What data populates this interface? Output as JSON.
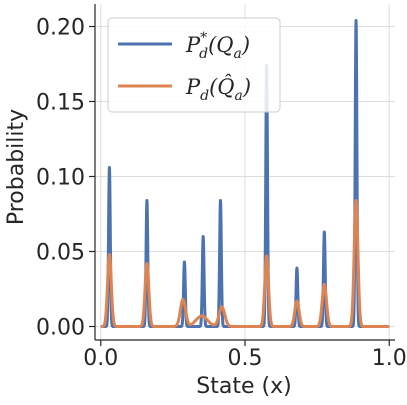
{
  "chart_data": {
    "type": "line",
    "xlabel": "State (x)",
    "ylabel": "Probability",
    "xlim": [
      -0.02,
      1.02
    ],
    "ylim": [
      -0.009,
      0.215
    ],
    "xticks": [
      0.0,
      0.5,
      1.0
    ],
    "xtick_labels": [
      "0.0",
      "0.5",
      "1.0"
    ],
    "yticks": [
      0.0,
      0.05,
      0.1,
      0.15,
      0.2
    ],
    "ytick_labels": [
      "0.00",
      "0.05",
      "0.10",
      "0.15",
      "0.20"
    ],
    "grid": true,
    "legend_position": "top-left",
    "series": [
      {
        "name": "P_d^*(Q_a)",
        "legend": {
          "base": "P",
          "sub": "d",
          "sup": "*",
          "arg": "(Q",
          "argsub": "a",
          "tail": ")"
        },
        "color": "#4c72b0",
        "peaks": [
          {
            "x": 0.03,
            "y": 0.106,
            "width": 0.003
          },
          {
            "x": 0.16,
            "y": 0.084,
            "width": 0.003
          },
          {
            "x": 0.29,
            "y": 0.043,
            "width": 0.003
          },
          {
            "x": 0.355,
            "y": 0.06,
            "width": 0.003
          },
          {
            "x": 0.415,
            "y": 0.084,
            "width": 0.003
          },
          {
            "x": 0.575,
            "y": 0.174,
            "width": 0.003
          },
          {
            "x": 0.68,
            "y": 0.039,
            "width": 0.003
          },
          {
            "x": 0.775,
            "y": 0.063,
            "width": 0.003
          },
          {
            "x": 0.885,
            "y": 0.204,
            "width": 0.003
          }
        ]
      },
      {
        "name": "P_d(Q̂_a)",
        "legend": {
          "base": "P",
          "sub": "d",
          "sup": "",
          "arg": "(Q̂",
          "argsub": "a",
          "tail": ")"
        },
        "color": "#dd8452",
        "peaks": [
          {
            "x": 0.03,
            "y": 0.048,
            "width": 0.0065
          },
          {
            "x": 0.16,
            "y": 0.042,
            "width": 0.0065
          },
          {
            "x": 0.285,
            "y": 0.018,
            "width": 0.009
          },
          {
            "x": 0.35,
            "y": 0.007,
            "width": 0.02
          },
          {
            "x": 0.42,
            "y": 0.013,
            "width": 0.01
          },
          {
            "x": 0.575,
            "y": 0.047,
            "width": 0.0065
          },
          {
            "x": 0.68,
            "y": 0.017,
            "width": 0.0075
          },
          {
            "x": 0.775,
            "y": 0.028,
            "width": 0.0075
          },
          {
            "x": 0.885,
            "y": 0.084,
            "width": 0.0065
          }
        ]
      }
    ]
  }
}
